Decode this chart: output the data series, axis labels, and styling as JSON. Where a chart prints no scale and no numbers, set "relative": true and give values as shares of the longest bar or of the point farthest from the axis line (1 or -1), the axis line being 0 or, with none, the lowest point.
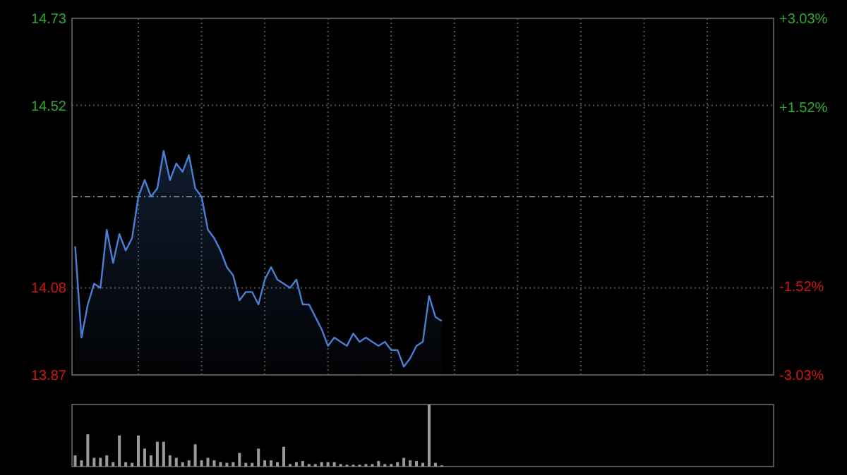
{
  "chart_data": [
    {
      "type": "area",
      "categories": [
        null,
        null,
        null,
        null,
        null,
        null,
        null,
        null,
        null,
        null,
        null,
        null,
        null,
        null,
        null,
        null,
        null,
        null,
        null,
        null,
        null,
        null,
        null,
        null,
        null,
        null,
        null,
        null,
        null,
        null,
        null,
        null,
        null,
        null,
        null,
        null,
        null,
        null,
        null,
        null,
        null,
        null,
        null,
        null,
        null,
        null,
        null,
        null,
        null,
        null,
        null,
        null,
        null,
        null,
        null,
        null,
        null,
        null,
        null
      ],
      "values": [
        14.18,
        13.96,
        14.04,
        14.09,
        14.08,
        14.22,
        14.14,
        14.21,
        14.17,
        14.2,
        14.3,
        14.34,
        14.3,
        14.32,
        14.41,
        14.34,
        14.38,
        14.36,
        14.4,
        14.32,
        14.3,
        14.22,
        14.2,
        14.17,
        14.13,
        14.11,
        14.05,
        14.07,
        14.07,
        14.04,
        14.1,
        14.13,
        14.1,
        14.09,
        14.08,
        14.1,
        14.04,
        14.04,
        14.01,
        13.98,
        13.94,
        13.96,
        13.95,
        13.94,
        13.97,
        13.95,
        13.96,
        13.95,
        13.94,
        13.95,
        13.93,
        13.93,
        13.89,
        13.91,
        13.94,
        13.95,
        14.06,
        14.01,
        14.0
      ],
      "color": "#4a7fd4",
      "ylim": [
        13.87,
        14.73
      ],
      "yticks": [
        14.73,
        14.52,
        14.08,
        13.87
      ],
      "ref_lines": [
        {
          "axis": "y",
          "value": 14.3,
          "color": "#777777",
          "line_style": "dashdot"
        }
      ],
      "y2lim": [
        -3.03,
        3.03
      ],
      "y2ticks": [
        {
          "value": 3.03,
          "label": "+3.03%"
        },
        {
          "value": 1.52,
          "label": "+1.52%"
        },
        {
          "value": -1.52,
          "label": "-1.52%"
        },
        {
          "value": -3.03,
          "label": "-3.03%"
        }
      ],
      "grid": true
    },
    {
      "type": "bar",
      "relative": true,
      "color": "#9a9a9a",
      "categories": [
        null,
        null,
        null,
        null,
        null,
        null,
        null,
        null,
        null,
        null,
        null,
        null,
        null,
        null,
        null,
        null,
        null,
        null,
        null,
        null,
        null,
        null,
        null,
        null,
        null,
        null,
        null,
        null,
        null,
        null,
        null,
        null,
        null,
        null,
        null,
        null,
        null,
        null,
        null,
        null,
        null,
        null,
        null,
        null,
        null,
        null,
        null,
        null,
        null,
        null,
        null,
        null,
        null,
        null,
        null,
        null,
        null,
        null,
        null
      ],
      "values": [
        0.18,
        0.1,
        0.52,
        0.14,
        0.14,
        0.18,
        0.07,
        0.5,
        0.07,
        0.06,
        0.5,
        0.29,
        0.18,
        0.4,
        0.4,
        0.18,
        0.14,
        0.07,
        0.1,
        0.36,
        0.1,
        0.14,
        0.1,
        0.07,
        0.06,
        0.07,
        0.22,
        0.06,
        0.06,
        0.29,
        0.1,
        0.1,
        0.07,
        0.32,
        0.04,
        0.07,
        0.09,
        0.04,
        0.04,
        0.07,
        0.07,
        0.07,
        0.04,
        0.03,
        0.03,
        0.03,
        0.04,
        0.04,
        0.09,
        0.04,
        0.04,
        0.07,
        0.14,
        0.1,
        0.09,
        0.06,
        1,
        0.06,
        0.02
      ]
    }
  ]
}
